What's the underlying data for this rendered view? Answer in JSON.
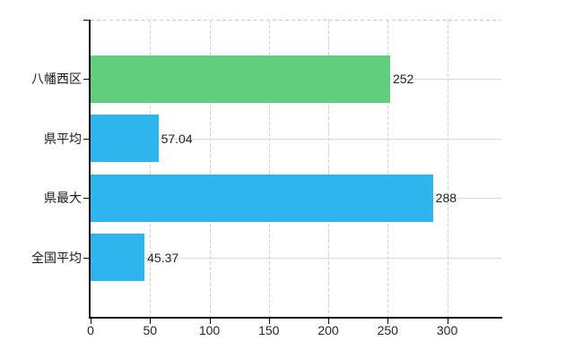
{
  "chart_data": {
    "type": "bar",
    "orientation": "horizontal",
    "title": "",
    "xlabel": "",
    "ylabel": "",
    "categories": [
      "八幡西区",
      "県平均",
      "県最大",
      "全国平均"
    ],
    "values": [
      252,
      57.04,
      288,
      45.37
    ],
    "value_labels": [
      "252",
      "57.04",
      "288",
      "45.37"
    ],
    "bar_colors": [
      "#61cd7d",
      "#2fb5ee",
      "#2fb5ee",
      "#2fb5ee"
    ],
    "x_ticks": [
      0,
      50,
      100,
      150,
      200,
      250,
      300
    ],
    "x_tick_labels": [
      "0",
      "50",
      "100",
      "150",
      "200",
      "250",
      "300"
    ],
    "xlim": [
      0,
      345.6
    ],
    "grid": true,
    "legend": false,
    "colors": {
      "background": "#ffffff",
      "axis": "#0a0a0a",
      "gridline": "#d9d9d9",
      "text": "#222222",
      "bar_green": "#61cd7d",
      "bar_blue": "#2fb5ee"
    }
  }
}
